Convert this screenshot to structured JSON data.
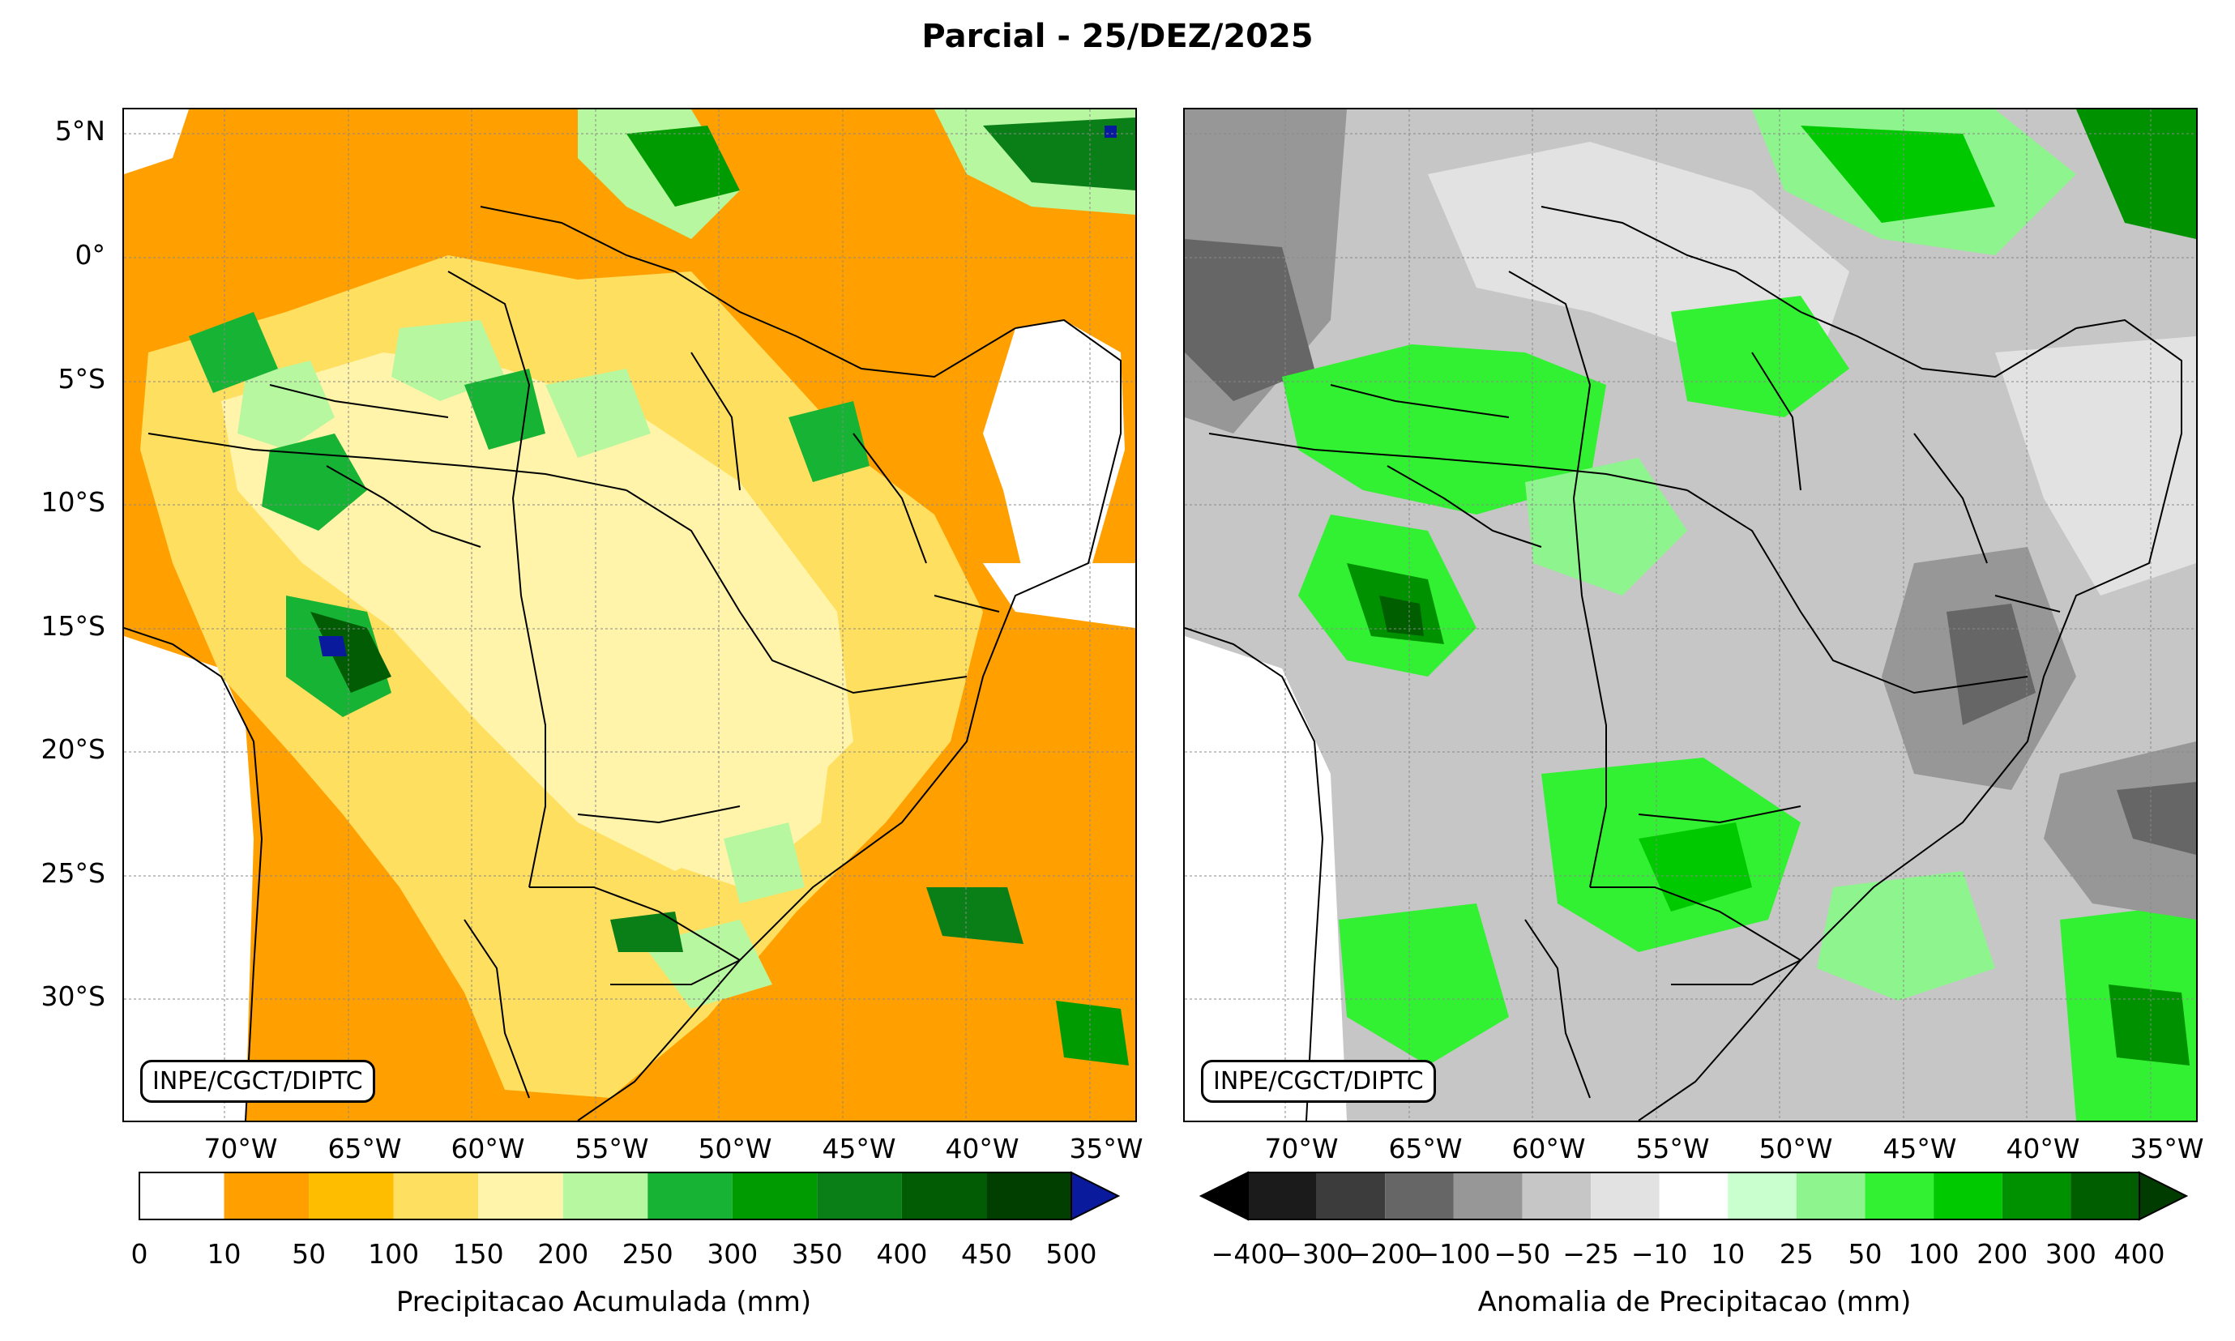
{
  "title": "Parcial - 25/DEZ/2025",
  "left_panel": {
    "badge": "INPE/CGCT/DIPTC",
    "colorbar_label": "Precipitacao Acumulada (mm)",
    "colorbar_ticks": [
      "0",
      "10",
      "50",
      "100",
      "150",
      "200",
      "250",
      "300",
      "350",
      "400",
      "450",
      "500"
    ],
    "colorbar_colors": [
      "#ffffff",
      "#ff9f00",
      "#ffbd00",
      "#ffdf5f",
      "#fff4a9",
      "#b7f7a0",
      "#16b334",
      "#009b00",
      "#0b7f17",
      "#015c04",
      "#003f00"
    ],
    "extend_color": "#0a1a9c"
  },
  "right_panel": {
    "badge": "INPE/CGCT/DIPTC",
    "colorbar_label": "Anomalia de Precipitacao (mm)",
    "colorbar_ticks": [
      "−400",
      "−300",
      "−200",
      "−100",
      "−50",
      "−25",
      "−10",
      "10",
      "25",
      "50",
      "100",
      "200",
      "300",
      "400"
    ],
    "colorbar_colors": [
      "#1b1b1b",
      "#3c3c3c",
      "#666666",
      "#979797",
      "#c6c6c6",
      "#e2e2e2",
      "#ffffff",
      "#c9ffcf",
      "#8ef48e",
      "#32f032",
      "#00c900",
      "#009100",
      "#005e00"
    ],
    "extend_low_color": "#000000",
    "extend_high_color": "#003c00"
  },
  "axes": {
    "lat_labels": [
      "5°N",
      "0°",
      "5°S",
      "10°S",
      "15°S",
      "20°S",
      "25°S",
      "30°S"
    ],
    "lon_labels": [
      "70°W",
      "65°W",
      "60°W",
      "55°W",
      "50°W",
      "45°W",
      "40°W",
      "35°W"
    ]
  },
  "colors": {
    "ocean": "#ffffff",
    "border": "#000000",
    "grid": "#888888"
  }
}
